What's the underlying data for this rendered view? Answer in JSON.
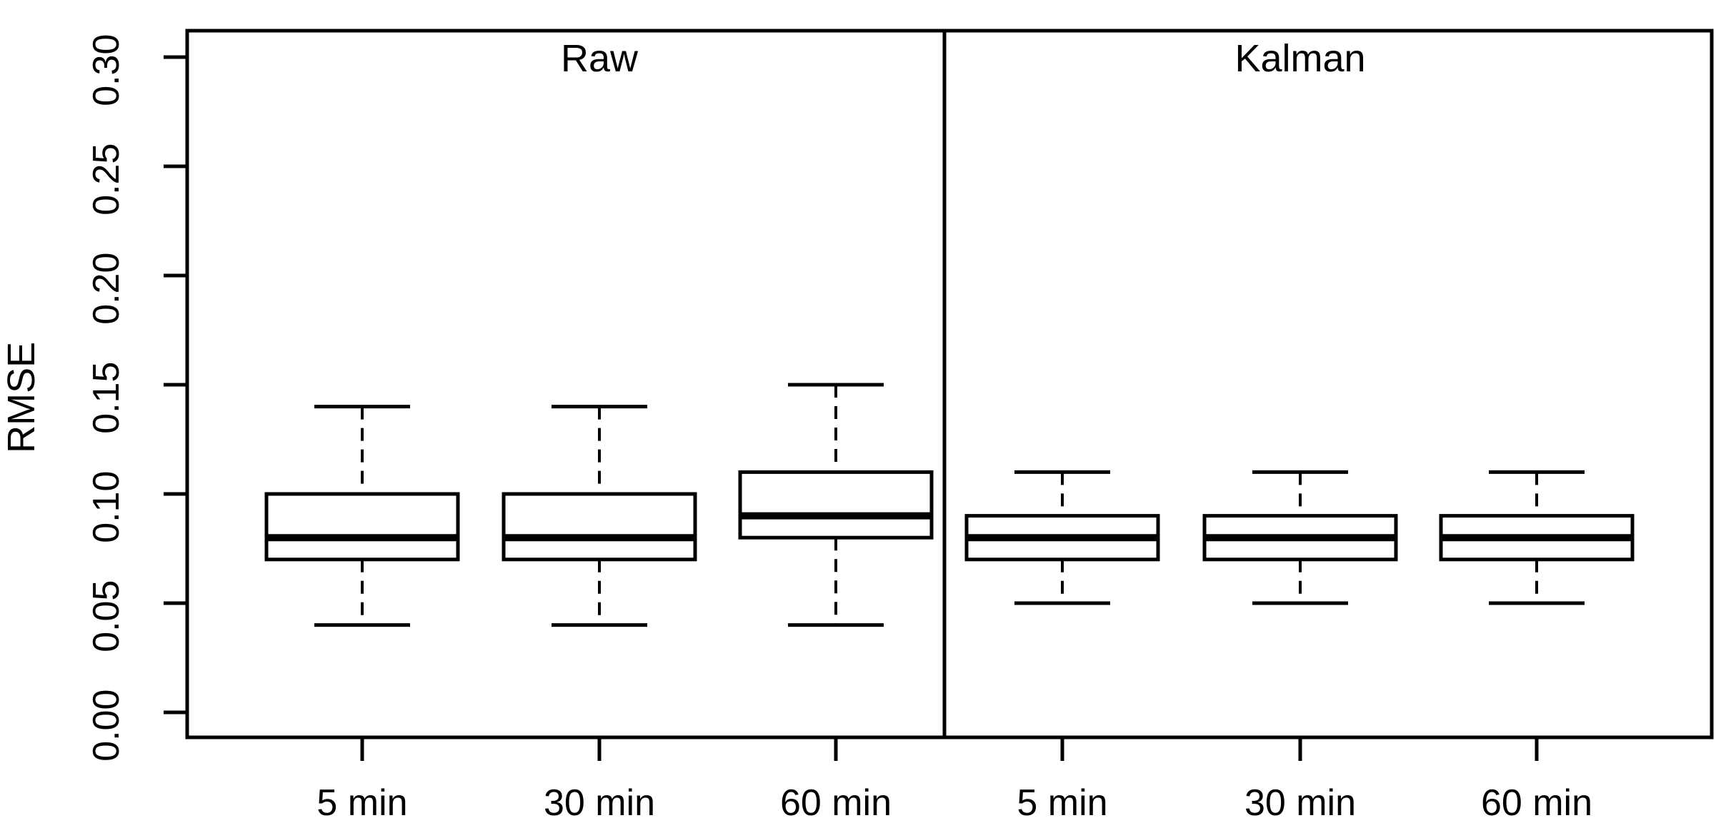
{
  "figure": {
    "ylabel": "RMSE",
    "panel_labels": [
      "Raw",
      "Kalman"
    ],
    "x_categories": [
      "5 min",
      "30 min",
      "60 min"
    ],
    "colors": {
      "stroke": "#000000",
      "box_fill": "#ffffff",
      "background": "#ffffff"
    }
  },
  "chart_data": {
    "type": "boxplot",
    "title": "",
    "xlabel": "",
    "ylabel": "RMSE",
    "ylim": [
      0.0,
      0.3
    ],
    "yticks": [
      0.0,
      0.05,
      0.1,
      0.15,
      0.2,
      0.25,
      0.3
    ],
    "ytick_labels": [
      "0.00",
      "0.05",
      "0.10",
      "0.15",
      "0.20",
      "0.25",
      "0.30"
    ],
    "grid": false,
    "legend_position": "none",
    "panels": [
      {
        "label": "Raw",
        "categories": [
          "5 min",
          "30 min",
          "60 min"
        ],
        "boxes": [
          {
            "category": "5 min",
            "whisker_low": 0.04,
            "q1": 0.07,
            "median": 0.08,
            "q3": 0.1,
            "whisker_high": 0.14
          },
          {
            "category": "30 min",
            "whisker_low": 0.04,
            "q1": 0.07,
            "median": 0.08,
            "q3": 0.1,
            "whisker_high": 0.14
          },
          {
            "category": "60 min",
            "whisker_low": 0.04,
            "q1": 0.08,
            "median": 0.09,
            "q3": 0.11,
            "whisker_high": 0.15
          }
        ]
      },
      {
        "label": "Kalman",
        "categories": [
          "5 min",
          "30 min",
          "60 min"
        ],
        "boxes": [
          {
            "category": "5 min",
            "whisker_low": 0.05,
            "q1": 0.07,
            "median": 0.08,
            "q3": 0.09,
            "whisker_high": 0.11
          },
          {
            "category": "30 min",
            "whisker_low": 0.05,
            "q1": 0.07,
            "median": 0.08,
            "q3": 0.09,
            "whisker_high": 0.11
          },
          {
            "category": "60 min",
            "whisker_low": 0.05,
            "q1": 0.07,
            "median": 0.08,
            "q3": 0.09,
            "whisker_high": 0.11
          }
        ]
      }
    ]
  }
}
